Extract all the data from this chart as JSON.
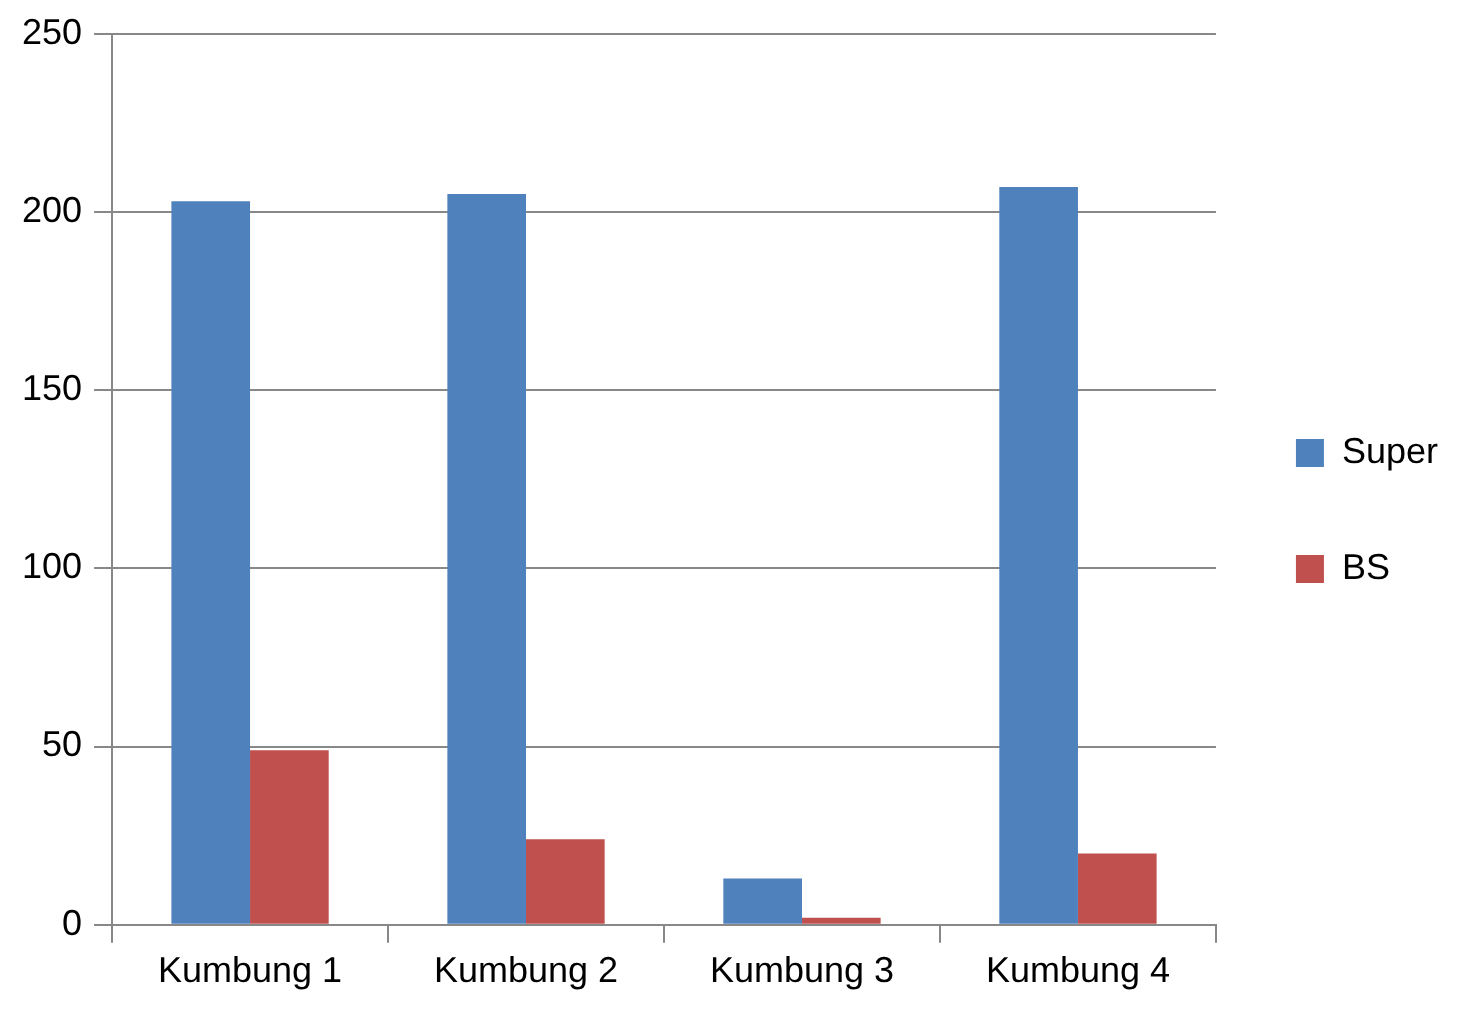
{
  "chart_data": {
    "type": "bar",
    "categories": [
      "Kumbung 1",
      "Kumbung 2",
      "Kumbung 3",
      "Kumbung 4"
    ],
    "series": [
      {
        "name": "Super",
        "color": "#4f81bd",
        "values": [
          203,
          205,
          13,
          207
        ]
      },
      {
        "name": "BS",
        "color": "#c0504d",
        "values": [
          49,
          24,
          2,
          20
        ]
      }
    ],
    "ylim": [
      0,
      250
    ],
    "yticks": [
      0,
      50,
      100,
      150,
      200,
      250
    ],
    "grid": "y",
    "legend": "right"
  }
}
